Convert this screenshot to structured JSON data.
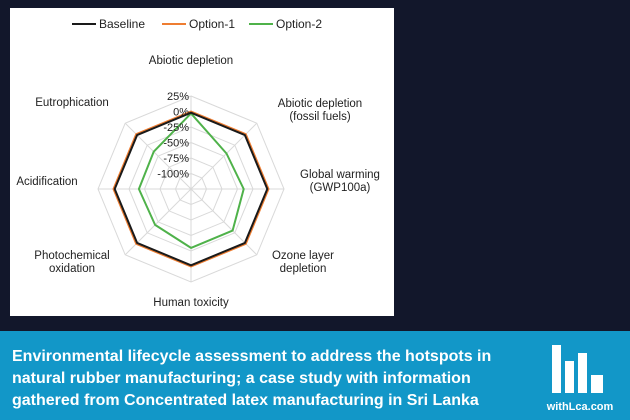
{
  "chart_data": {
    "type": "radar",
    "axes": [
      [
        "Abiotic depletion"
      ],
      [
        "Abiotic depletion",
        "(fossil fuels)"
      ],
      [
        "Global warming",
        "(GWP100a)"
      ],
      [
        "Ozone layer",
        "depletion"
      ],
      [
        "Human toxicity"
      ],
      [
        "Photochemical",
        "oxidation"
      ],
      [
        "Acidification"
      ],
      [
        "Eutrophication"
      ]
    ],
    "radial_ticks": [
      "25%",
      "0%",
      "-25%",
      "-50%",
      "-75%",
      "-100%"
    ],
    "radial_range": [
      -125,
      25
    ],
    "series": [
      {
        "name": "Baseline",
        "color": "#1a1a1a",
        "values": [
          -2,
          -2,
          -2,
          -2,
          -2,
          -2,
          -2,
          -2
        ]
      },
      {
        "name": "Option-1",
        "color": "#ee7d31",
        "values": [
          0,
          0,
          0,
          0,
          0,
          0,
          0,
          0
        ]
      },
      {
        "name": "Option-2",
        "color": "#4fb24a",
        "values": [
          -3,
          -44,
          -40,
          -30,
          -30,
          -43,
          -41,
          -40
        ]
      }
    ],
    "grid": true,
    "legend": "top"
  },
  "caption": "Environmental lifecycle assessment to address the hotspots in natural rubber manufacturing; a case study with information gathered from Concentrated latex manufacturing in Sri Lanka",
  "brand": {
    "name": "withLca.com",
    "color": "#ffffff"
  },
  "colors": {
    "background": "#12172b",
    "banner": "#1297c8",
    "grid": "#d9d9d9"
  }
}
